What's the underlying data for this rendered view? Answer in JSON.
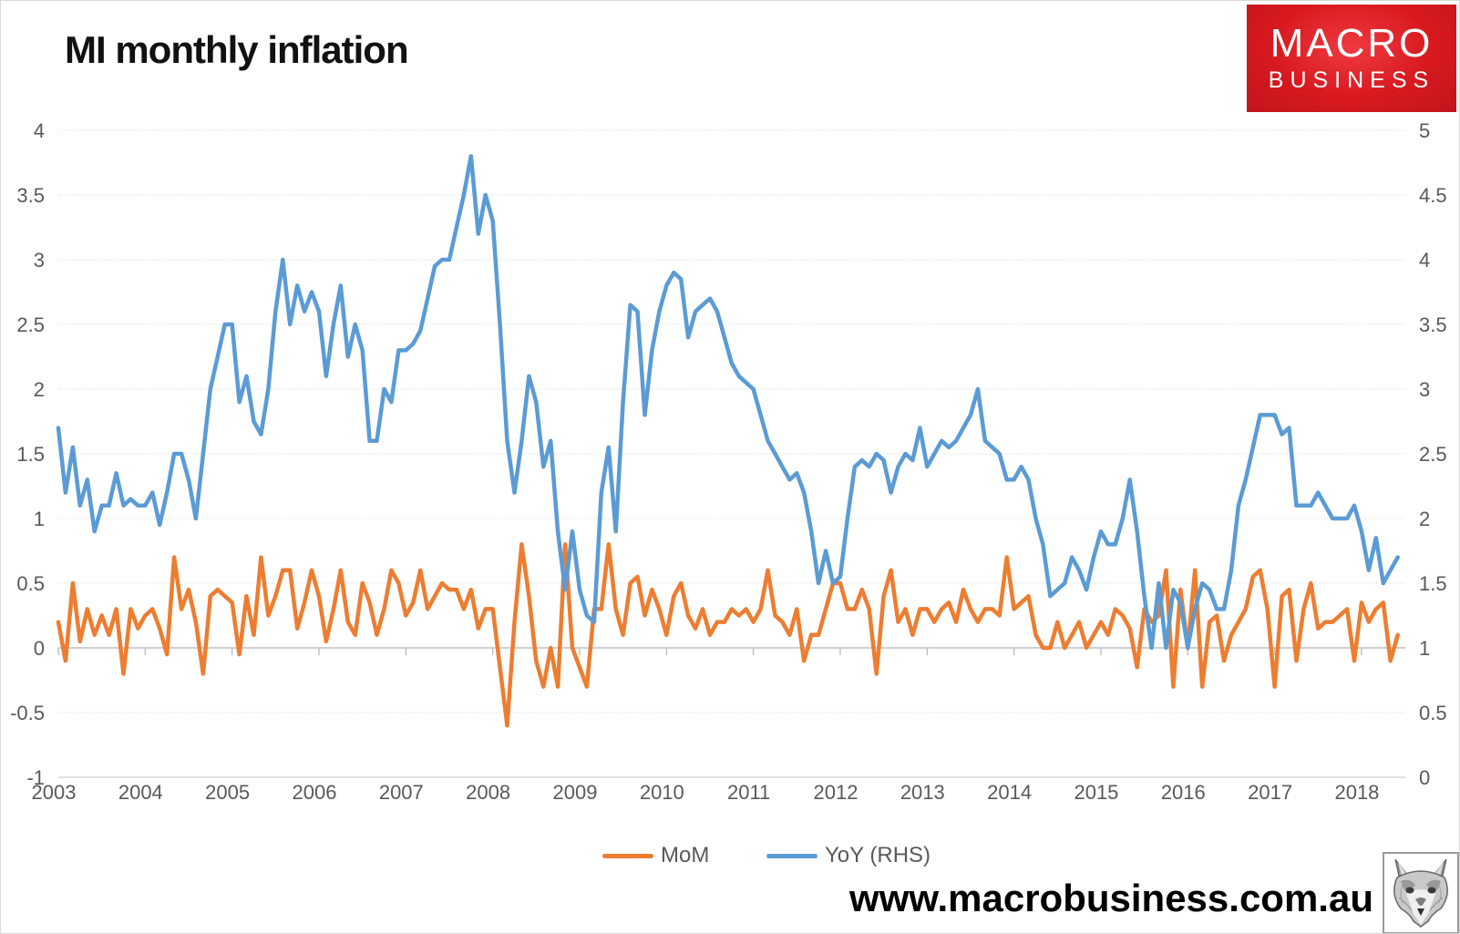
{
  "header": {
    "title": "MI monthly inflation",
    "logo": {
      "line1": "MACRO",
      "line2": "BUSINESS",
      "bg_color": "#d7191f",
      "text_color": "#ffffff"
    }
  },
  "footer": {
    "website": "www.macrobusiness.com.au",
    "fox_logo_icon": "fox-sketch-icon"
  },
  "colors": {
    "mom_line": "#ED7D31",
    "yoy_line": "#5B9BD5",
    "gridline": "#D9D9D9",
    "axis_line": "#BFBFBF",
    "tick_text": "#595959"
  },
  "chart_data": {
    "type": "line",
    "title": "MI monthly inflation",
    "x_tick_labels": [
      "2003",
      "2004",
      "2005",
      "2006",
      "2007",
      "2008",
      "2009",
      "2010",
      "2011",
      "2012",
      "2013",
      "2014",
      "2015",
      "2016",
      "2017",
      "2018"
    ],
    "x_frequency": "monthly",
    "x_range_note": "Jan 2003 to mid 2018",
    "grid": true,
    "legend_position": "bottom",
    "left_axis": {
      "min": -1,
      "max": 4,
      "step": 0.5,
      "tick_labels": [
        "4",
        "3.5",
        "3",
        "2.5",
        "2",
        "1.5",
        "1",
        "0.5",
        "0",
        "-0.5",
        "-1"
      ]
    },
    "right_axis": {
      "min": 0,
      "max": 5,
      "step": 0.5,
      "tick_labels": [
        "5",
        "4.5",
        "4",
        "3.5",
        "3",
        "2.5",
        "2",
        "1.5",
        "1",
        "0.5",
        "0"
      ]
    },
    "series": [
      {
        "name": "MoM",
        "axis": "left",
        "color": "#ED7D31",
        "values": [
          0.2,
          -0.1,
          0.5,
          0.05,
          0.3,
          0.1,
          0.25,
          0.1,
          0.3,
          -0.2,
          0.3,
          0.15,
          0.25,
          0.3,
          0.15,
          -0.05,
          0.7,
          0.3,
          0.45,
          0.2,
          -0.2,
          0.4,
          0.45,
          0.4,
          0.35,
          -0.05,
          0.4,
          0.1,
          0.7,
          0.25,
          0.4,
          0.6,
          0.6,
          0.15,
          0.35,
          0.6,
          0.4,
          0.05,
          0.3,
          0.6,
          0.2,
          0.1,
          0.5,
          0.35,
          0.1,
          0.3,
          0.6,
          0.5,
          0.25,
          0.35,
          0.6,
          0.3,
          0.4,
          0.5,
          0.45,
          0.45,
          0.3,
          0.45,
          0.15,
          0.3,
          0.3,
          -0.15,
          -0.6,
          0.2,
          0.8,
          0.4,
          -0.1,
          -0.3,
          0.0,
          -0.3,
          0.8,
          0.0,
          -0.15,
          -0.3,
          0.3,
          0.3,
          0.8,
          0.3,
          0.1,
          0.5,
          0.55,
          0.25,
          0.45,
          0.3,
          0.1,
          0.4,
          0.5,
          0.25,
          0.15,
          0.3,
          0.1,
          0.2,
          0.2,
          0.3,
          0.25,
          0.3,
          0.2,
          0.3,
          0.6,
          0.25,
          0.2,
          0.1,
          0.3,
          -0.1,
          0.1,
          0.1,
          0.3,
          0.5,
          0.5,
          0.3,
          0.3,
          0.45,
          0.3,
          -0.2,
          0.4,
          0.6,
          0.2,
          0.3,
          0.1,
          0.3,
          0.3,
          0.2,
          0.3,
          0.35,
          0.2,
          0.45,
          0.3,
          0.2,
          0.3,
          0.3,
          0.25,
          0.7,
          0.3,
          0.35,
          0.4,
          0.1,
          0.0,
          0.0,
          0.2,
          0.0,
          0.1,
          0.2,
          0.0,
          0.1,
          0.2,
          0.1,
          0.3,
          0.25,
          0.15,
          -0.15,
          0.3,
          0.2,
          0.25,
          0.6,
          -0.3,
          0.45,
          0.0,
          0.6,
          -0.3,
          0.2,
          0.25,
          -0.1,
          0.1,
          0.2,
          0.3,
          0.55,
          0.6,
          0.3,
          -0.3,
          0.4,
          0.45,
          -0.1,
          0.3,
          0.5,
          0.15,
          0.2,
          0.2,
          0.25,
          0.3,
          -0.1,
          0.35,
          0.2,
          0.3,
          0.35,
          -0.1,
          0.1
        ]
      },
      {
        "name": "YoY (RHS)",
        "axis": "right",
        "color": "#5B9BD5",
        "values": [
          2.7,
          2.2,
          2.55,
          2.1,
          2.3,
          1.9,
          2.1,
          2.1,
          2.35,
          2.1,
          2.15,
          2.1,
          2.1,
          2.2,
          1.95,
          2.2,
          2.5,
          2.5,
          2.3,
          2.0,
          2.5,
          3.0,
          3.25,
          3.5,
          3.5,
          2.9,
          3.1,
          2.75,
          2.65,
          3.0,
          3.6,
          4.0,
          3.5,
          3.8,
          3.6,
          3.75,
          3.6,
          3.1,
          3.5,
          3.8,
          3.25,
          3.5,
          3.3,
          2.6,
          2.6,
          3.0,
          2.9,
          3.3,
          3.3,
          3.35,
          3.45,
          3.7,
          3.95,
          4.0,
          4.0,
          4.25,
          4.5,
          4.8,
          4.2,
          4.5,
          4.3,
          3.5,
          2.6,
          2.2,
          2.6,
          3.1,
          2.9,
          2.4,
          2.6,
          1.9,
          1.45,
          1.9,
          1.45,
          1.25,
          1.2,
          2.2,
          2.55,
          1.9,
          2.9,
          3.65,
          3.6,
          2.8,
          3.3,
          3.6,
          3.8,
          3.9,
          3.85,
          3.4,
          3.6,
          3.65,
          3.7,
          3.6,
          3.4,
          3.2,
          3.1,
          3.05,
          3.0,
          2.8,
          2.6,
          2.5,
          2.4,
          2.3,
          2.35,
          2.2,
          1.9,
          1.5,
          1.75,
          1.5,
          1.55,
          2.0,
          2.4,
          2.45,
          2.4,
          2.5,
          2.45,
          2.2,
          2.4,
          2.5,
          2.45,
          2.7,
          2.4,
          2.5,
          2.6,
          2.55,
          2.6,
          2.7,
          2.8,
          3.0,
          2.6,
          2.55,
          2.5,
          2.3,
          2.3,
          2.4,
          2.3,
          2.0,
          1.8,
          1.4,
          1.45,
          1.5,
          1.7,
          1.6,
          1.45,
          1.7,
          1.9,
          1.8,
          1.8,
          2.0,
          2.3,
          1.9,
          1.4,
          1.0,
          1.5,
          1.0,
          1.45,
          1.35,
          1.0,
          1.3,
          1.5,
          1.45,
          1.3,
          1.3,
          1.6,
          2.1,
          2.3,
          2.55,
          2.8,
          2.8,
          2.8,
          2.65,
          2.7,
          2.1,
          2.1,
          2.1,
          2.2,
          2.1,
          2.0,
          2.0,
          2.0,
          2.1,
          1.9,
          1.6,
          1.85,
          1.5,
          1.6,
          1.7
        ]
      }
    ]
  },
  "legend": {
    "items": [
      {
        "label": "MoM"
      },
      {
        "label": "YoY (RHS)"
      }
    ]
  }
}
